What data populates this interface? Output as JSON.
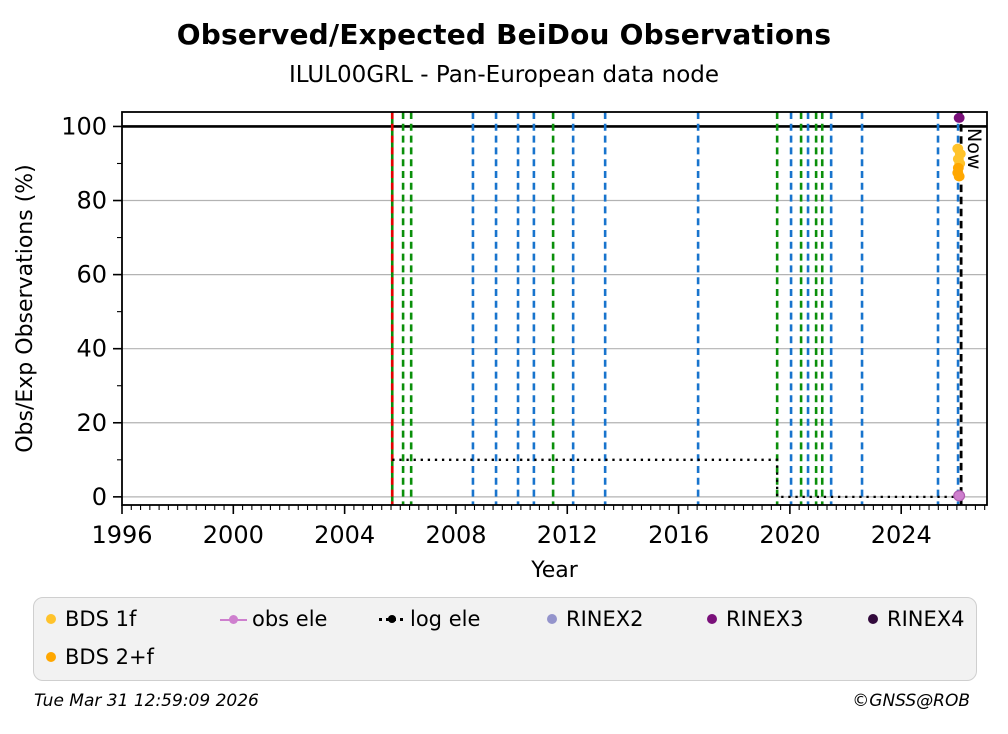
{
  "header": {
    "title": "Observed/Expected BeiDou Observations",
    "subtitle": "ILUL00GRL - Pan-European data node"
  },
  "chart_data": {
    "type": "scatter",
    "title": "Observed/Expected BeiDou Observations",
    "subtitle": "ILUL00GRL - Pan-European data node",
    "xlabel": "Year",
    "ylabel": "Obs/Exp Observations (%)",
    "xlim": [
      1996,
      2027.08
    ],
    "ylim": [
      -2.2,
      103.9
    ],
    "xticks": [
      1996,
      2000,
      2004,
      2008,
      2012,
      2016,
      2020,
      2024
    ],
    "yticks": [
      0,
      20,
      40,
      60,
      80,
      100
    ],
    "minor_x_step_years": 0.3333,
    "minor_y_step": 10,
    "grid_y_values": [
      0,
      20,
      40,
      60,
      80
    ],
    "hline_100_percent": 100,
    "colors": {
      "green": "#0a8f0a",
      "blue": "#1874cd",
      "red": "#e60000",
      "grid": "#b3b3b3",
      "black": "#000000",
      "bds1f": "#ffc32b",
      "bds2f": "#ffa700",
      "obs_ele": "#ce7fce",
      "obs_ele_edge": "#b05eb0",
      "log_ele": "#000000",
      "rinex2": "#9494cc",
      "rinex3": "#7a107a",
      "rinex4": "#320a3c"
    },
    "event_vlines": [
      {
        "x": 2005.71,
        "color": "green",
        "style": "solid"
      },
      {
        "x": 2005.71,
        "color": "red",
        "style": "dashed"
      },
      {
        "x": 2006.1,
        "color": "green",
        "style": "dashed"
      },
      {
        "x": 2006.39,
        "color": "green",
        "style": "dashed"
      },
      {
        "x": 2008.61,
        "color": "blue",
        "style": "dashed"
      },
      {
        "x": 2009.44,
        "color": "blue",
        "style": "dashed"
      },
      {
        "x": 2010.23,
        "color": "blue",
        "style": "dashed"
      },
      {
        "x": 2010.8,
        "color": "blue",
        "style": "dashed"
      },
      {
        "x": 2011.49,
        "color": "green",
        "style": "dashed"
      },
      {
        "x": 2012.21,
        "color": "blue",
        "style": "dashed"
      },
      {
        "x": 2013.36,
        "color": "blue",
        "style": "dashed"
      },
      {
        "x": 2016.7,
        "color": "blue",
        "style": "dashed"
      },
      {
        "x": 2019.54,
        "color": "green",
        "style": "dashed"
      },
      {
        "x": 2020.04,
        "color": "blue",
        "style": "dashed"
      },
      {
        "x": 2020.4,
        "color": "green",
        "style": "dashed"
      },
      {
        "x": 2020.65,
        "color": "blue",
        "style": "dashed"
      },
      {
        "x": 2020.94,
        "color": "green",
        "style": "dashed"
      },
      {
        "x": 2021.16,
        "color": "green",
        "style": "dashed"
      },
      {
        "x": 2021.48,
        "color": "blue",
        "style": "dashed"
      },
      {
        "x": 2022.59,
        "color": "blue",
        "style": "dashed"
      },
      {
        "x": 2025.32,
        "color": "blue",
        "style": "dashed"
      },
      {
        "x": 2026.04,
        "color": "blue",
        "style": "dashed"
      }
    ],
    "now_line": {
      "x": 2026.15,
      "label": "Now"
    },
    "series": [
      {
        "name": "log ele",
        "type": "line-dotted",
        "color_key": "log_ele",
        "points": [
          [
            2005.71,
            10
          ],
          [
            2019.54,
            10
          ],
          [
            2019.54,
            0
          ],
          [
            2026.04,
            0
          ]
        ]
      },
      {
        "name": "BDS 1f",
        "type": "scatter",
        "color_key": "bds1f",
        "points": [
          [
            2026.03,
            94.0
          ],
          [
            2026.12,
            92.6
          ],
          [
            2026.05,
            91.2
          ],
          [
            2026.1,
            90.0
          ]
        ]
      },
      {
        "name": "BDS 2+f",
        "type": "scatter",
        "color_key": "bds2f",
        "points": [
          [
            2026.05,
            88.8
          ],
          [
            2026.03,
            87.5
          ],
          [
            2026.08,
            86.5
          ]
        ]
      },
      {
        "name": "RINEX3",
        "type": "scatter",
        "color_key": "rinex3",
        "points": [
          [
            2026.08,
            102.3
          ]
        ]
      },
      {
        "name": "obs ele",
        "type": "scatter",
        "color_key": "obs_ele",
        "points": [
          [
            2026.08,
            0.3
          ]
        ]
      }
    ]
  },
  "legend": {
    "items": [
      {
        "label": "BDS 1f",
        "color": "#ffc32b",
        "marker": "dot"
      },
      {
        "label": "obs ele",
        "color": "#ce7fce",
        "marker": "line-dot"
      },
      {
        "label": "log ele",
        "color": "#000000",
        "marker": "dotted-line-dot"
      },
      {
        "label": "RINEX2",
        "color": "#9494cc",
        "marker": "dot"
      },
      {
        "label": "RINEX3",
        "color": "#7a107a",
        "marker": "dot"
      },
      {
        "label": "RINEX4",
        "color": "#320a3c",
        "marker": "dot"
      },
      {
        "label": "BDS 2+f",
        "color": "#ffa700",
        "marker": "dot"
      }
    ]
  },
  "footer": {
    "timestamp": "Tue Mar 31 12:59:09 2026",
    "copyright": "©GNSS@ROB"
  }
}
